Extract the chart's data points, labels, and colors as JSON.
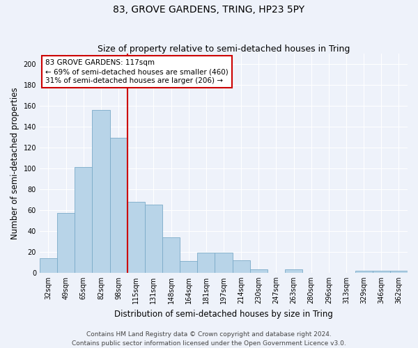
{
  "title": "83, GROVE GARDENS, TRING, HP23 5PY",
  "subtitle": "Size of property relative to semi-detached houses in Tring",
  "xlabel": "Distribution of semi-detached houses by size in Tring",
  "ylabel": "Number of semi-detached properties",
  "categories": [
    "32sqm",
    "49sqm",
    "65sqm",
    "82sqm",
    "98sqm",
    "115sqm",
    "131sqm",
    "148sqm",
    "164sqm",
    "181sqm",
    "197sqm",
    "214sqm",
    "230sqm",
    "247sqm",
    "263sqm",
    "280sqm",
    "296sqm",
    "313sqm",
    "329sqm",
    "346sqm",
    "362sqm"
  ],
  "values": [
    14,
    57,
    101,
    156,
    129,
    68,
    65,
    34,
    11,
    19,
    19,
    12,
    3,
    0,
    3,
    0,
    0,
    0,
    2,
    2,
    2
  ],
  "bar_color": "#b8d4e8",
  "bar_edge_color": "#7aaac8",
  "red_line_color": "#cc0000",
  "annotation_text": "83 GROVE GARDENS: 117sqm\n← 69% of semi-detached houses are smaller (460)\n31% of semi-detached houses are larger (206) →",
  "annotation_box_color": "#ffffff",
  "annotation_box_edge": "#cc0000",
  "ylim": [
    0,
    210
  ],
  "yticks": [
    0,
    20,
    40,
    60,
    80,
    100,
    120,
    140,
    160,
    180,
    200
  ],
  "footer_line1": "Contains HM Land Registry data © Crown copyright and database right 2024.",
  "footer_line2": "Contains public sector information licensed under the Open Government Licence v3.0.",
  "bg_color": "#eef2fa",
  "grid_color": "#ffffff",
  "title_fontsize": 10,
  "subtitle_fontsize": 9,
  "axis_label_fontsize": 8.5,
  "tick_fontsize": 7,
  "footer_fontsize": 6.5,
  "annotation_fontsize": 7.5
}
